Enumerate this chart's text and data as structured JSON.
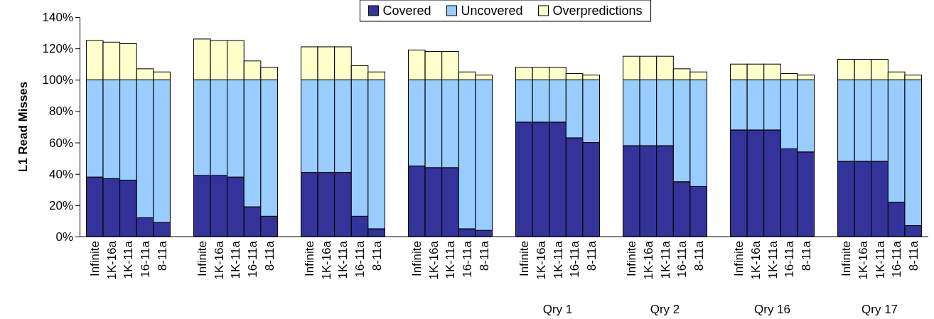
{
  "chart_data": {
    "type": "bar",
    "stacked": true,
    "ylabel": "L1 Read Misses",
    "categories": [
      "Infinite",
      "1K-16a",
      "1K-11a",
      "16-11a",
      "8-11a",
      "Infinite",
      "1K-16a",
      "1K-11a",
      "16-11a",
      "8-11a",
      "Infinite",
      "1K-16a",
      "1K-11a",
      "16-11a",
      "8-11a",
      "Infinite",
      "1K-16a",
      "1K-11a",
      "16-11a",
      "8-11a",
      "Infinite",
      "1K-16a",
      "1K-11a",
      "16-11a",
      "8-11a",
      "Infinite",
      "1K-16a",
      "1K-11a",
      "16-11a",
      "8-11a",
      "Infinite",
      "1K-16a",
      "1K-11a",
      "16-11a",
      "8-11a",
      "Infinite",
      "1K-16a",
      "1K-11a",
      "16-11a",
      "8-11a"
    ],
    "series": [
      {
        "name": "Covered",
        "color": "#333399",
        "values": [
          38,
          37,
          36,
          12,
          9,
          39,
          39,
          38,
          19,
          13,
          41,
          41,
          41,
          13,
          5,
          45,
          44,
          44,
          5,
          4,
          73,
          73,
          73,
          63,
          60,
          58,
          58,
          58,
          35,
          32,
          68,
          68,
          68,
          56,
          54,
          48,
          48,
          48,
          22,
          7
        ]
      },
      {
        "name": "Uncovered",
        "color": "#99ccff",
        "values": [
          62,
          63,
          64,
          88,
          91,
          61,
          61,
          62,
          81,
          87,
          59,
          59,
          59,
          87,
          95,
          55,
          56,
          56,
          95,
          96,
          27,
          27,
          27,
          37,
          40,
          42,
          42,
          42,
          65,
          68,
          32,
          32,
          32,
          44,
          46,
          52,
          52,
          52,
          78,
          93
        ]
      },
      {
        "name": "Overpredictions",
        "color": "#ffffcc",
        "values": [
          25,
          24,
          23,
          7,
          5,
          26,
          25,
          25,
          12,
          8,
          21,
          21,
          21,
          9,
          5,
          19,
          18,
          18,
          5,
          3,
          8,
          8,
          8,
          4,
          3,
          15,
          15,
          15,
          7,
          5,
          10,
          10,
          10,
          4,
          3,
          13,
          13,
          13,
          5,
          3
        ]
      }
    ],
    "ylim": [
      0,
      140
    ],
    "yticks": [
      {
        "value": 0,
        "label": "0%"
      },
      {
        "value": 20,
        "label": "20%"
      },
      {
        "value": 40,
        "label": "40%"
      },
      {
        "value": 60,
        "label": "60%"
      },
      {
        "value": 80,
        "label": "80%"
      },
      {
        "value": 100,
        "label": "100%"
      },
      {
        "value": 120,
        "label": "120%"
      },
      {
        "value": 140,
        "label": "140%"
      }
    ],
    "legend": "top",
    "annotations": [
      "Qry 1",
      "Qry 2",
      "Qry 16",
      "Qry 17"
    ]
  }
}
